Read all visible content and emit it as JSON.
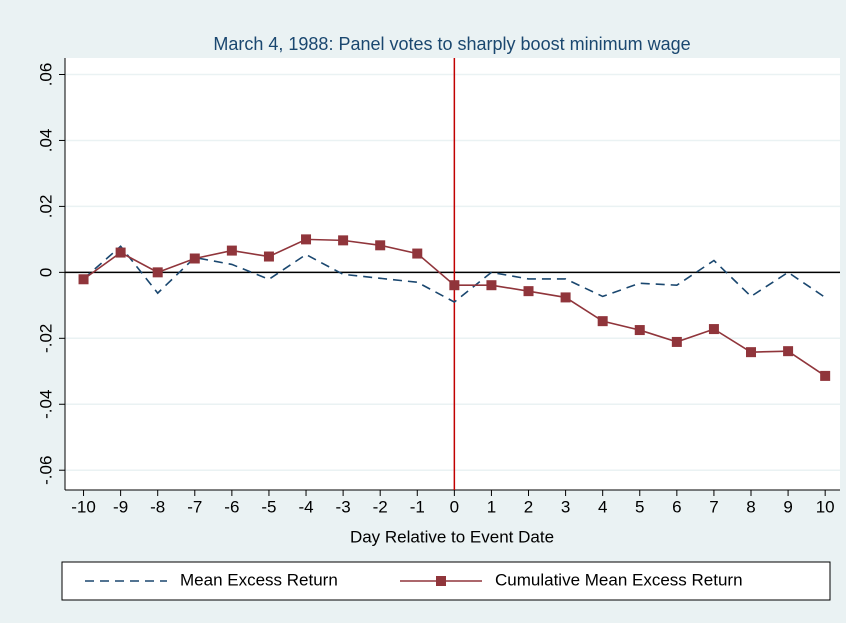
{
  "chart_data": {
    "type": "line",
    "title": "March 4, 1988: Panel votes to sharply boost minimum wage",
    "x_label": "Day Relative to Event Date",
    "x": [
      -10,
      -9,
      -8,
      -7,
      -6,
      -5,
      -4,
      -3,
      -2,
      -1,
      0,
      1,
      2,
      3,
      4,
      5,
      6,
      7,
      8,
      9,
      10
    ],
    "series": [
      {
        "name": "Mean Excess Return",
        "color": "#1a476f",
        "dash": true,
        "marker": false,
        "values": [
          -0.002,
          0.0079,
          -0.0063,
          0.0045,
          0.0024,
          -0.0021,
          0.0054,
          -0.0006,
          -0.0018,
          -0.003,
          -0.009,
          0,
          -0.002,
          -0.002,
          -0.0073,
          -0.0033,
          -0.0039,
          0.0036,
          -0.0073,
          0,
          -0.0076
        ]
      },
      {
        "name": "Cumulative Mean Excess Return",
        "color": "#90353b",
        "dash": false,
        "marker": true,
        "values": [
          -0.0021,
          0.006,
          0,
          0.0042,
          0.0066,
          0.0048,
          0.01,
          0.0097,
          0.0082,
          0.0057,
          -0.0039,
          -0.0039,
          -0.0057,
          -0.0076,
          -0.0148,
          -0.0175,
          -0.0211,
          -0.0172,
          -0.0242,
          -0.0239,
          -0.0314
        ]
      }
    ],
    "xlim": [
      -10.5,
      10.4
    ],
    "ylim": [
      -0.066,
      0.065
    ],
    "xticks": [
      -10,
      -9,
      -8,
      -7,
      -6,
      -5,
      -4,
      -3,
      -2,
      -1,
      0,
      1,
      2,
      3,
      4,
      5,
      6,
      7,
      8,
      9,
      10
    ],
    "yticks": [
      {
        "value": 0.06,
        "label": ".06"
      },
      {
        "value": 0.04,
        "label": ".04"
      },
      {
        "value": 0.02,
        "label": ".02"
      },
      0,
      {
        "value": -0.02,
        "label": "-.02"
      },
      {
        "value": -0.04,
        "label": "-.04"
      },
      {
        "value": -0.06,
        "label": "-.06"
      }
    ],
    "grid": true,
    "vline": 0,
    "vline_color": "#c10000",
    "hline": 0,
    "hline_color": "#000000",
    "legend": "bottom"
  }
}
